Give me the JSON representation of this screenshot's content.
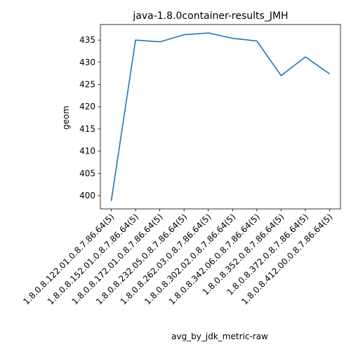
{
  "chart_data": {
    "type": "line",
    "title": "java-1.8.0container-results_JMH",
    "xlabel": "avg_by_jdk_metric-raw",
    "ylabel": "geom",
    "categories": [
      "1.8.0.8.122.01.0.8.7.86.64(5)",
      "1.8.0.8.152.01.0.8.7.86.64(5)",
      "1.8.0.8.172.01.0.8.7.86.64(5)",
      "1.8.0.8.232.05.0.8.7.86.64(5)",
      "1.8.0.8.262.03.0.8.7.86.64(5)",
      "1.8.0.8.302.02.0.8.7.86.64(5)",
      "1.8.0.8.342.06.0.8.7.86.64(5)",
      "1.8.0.8.352.0.8.7.86.64(5)",
      "1.8.0.8.372.0.8.7.86.64(5)",
      "1.8.0.8.412.00.0.8.7.86.64(5)"
    ],
    "series": [
      {
        "values": [
          398.8,
          435.0,
          434.6,
          436.2,
          436.6,
          435.4,
          434.8,
          427.0,
          431.2,
          427.4
        ],
        "color": "#1f77b4"
      }
    ],
    "yticks": [
      400,
      405,
      410,
      415,
      420,
      425,
      430,
      435
    ],
    "ylim": [
      397.0,
      438.5
    ],
    "grid": false,
    "legend": "none"
  }
}
